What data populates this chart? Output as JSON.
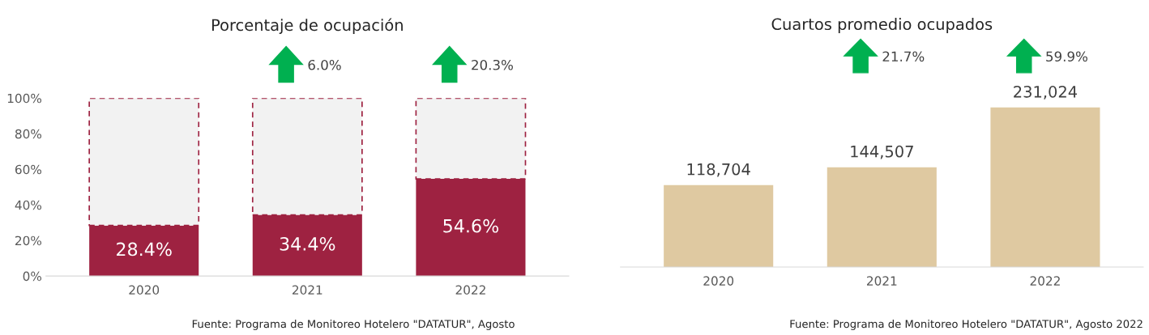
{
  "chart_data": [
    {
      "type": "bar",
      "title": "Porcentaje de ocupación",
      "categories": [
        "2020",
        "2021",
        "2022"
      ],
      "stacked": true,
      "series": [
        {
          "color": "#9e2241",
          "values": [
            28.4,
            34.4,
            54.6
          ],
          "value_labels": [
            "28.4%",
            "34.4%",
            "54.6%"
          ]
        },
        {
          "color": "#f2f2f2",
          "values": [
            71.6,
            65.6,
            45.4
          ],
          "line_style": "dashed"
        }
      ],
      "ylim": [
        0,
        100
      ],
      "yticks": [
        {
          "value": 0,
          "label": "0%"
        },
        {
          "value": 20,
          "label": "20%"
        },
        {
          "value": 40,
          "label": "40%"
        },
        {
          "value": 60,
          "label": "60%"
        },
        {
          "value": 80,
          "label": "80%"
        },
        {
          "value": 100,
          "label": "100%"
        }
      ],
      "grid": false,
      "annotations": [
        "6.0%",
        "20.3%",
        "Fuente: Programa de Monitoreo Hotelero \"DATATUR\", Agosto"
      ]
    },
    {
      "type": "bar",
      "title": "Cuartos promedio ocupados",
      "categories": [
        "2020",
        "2021",
        "2022"
      ],
      "values": [
        118704,
        144507,
        231024
      ],
      "value_labels": [
        "118,704",
        "144,507",
        "231,024"
      ],
      "color": "#dfc9a1",
      "grid": false,
      "tick_labels": "x",
      "annotations": [
        "21.7%",
        "59.9%",
        "Fuente: Programa de Monitoreo Hotelero \"DATATUR\", Agosto 2022"
      ]
    }
  ]
}
